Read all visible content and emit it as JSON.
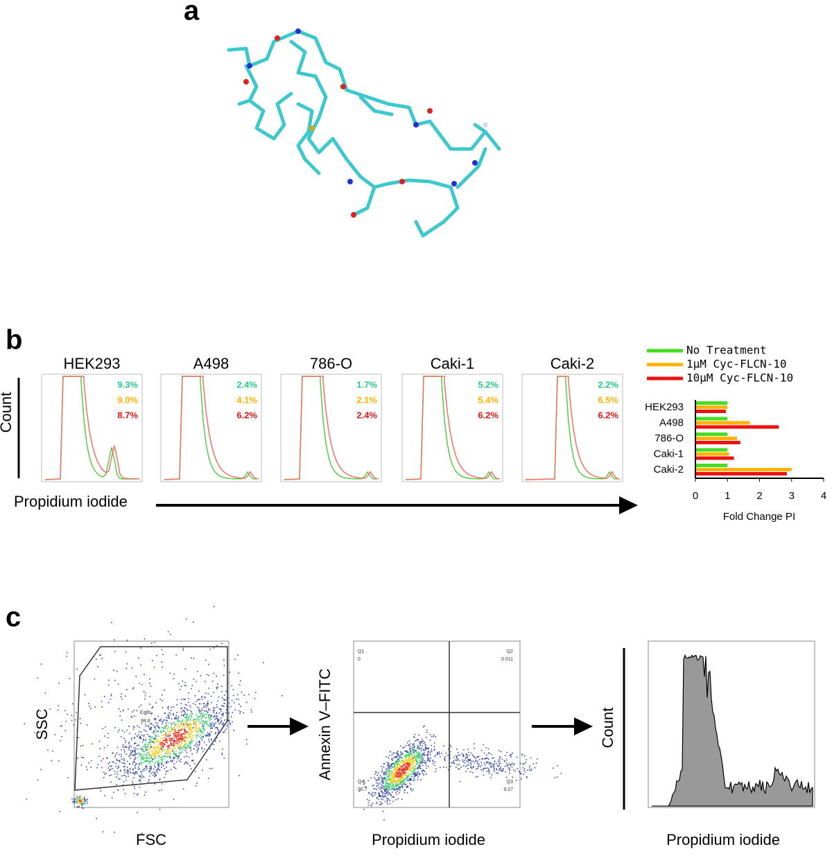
{
  "panel_a": {
    "label": "a"
  },
  "panel_b": {
    "label": "b",
    "y_label": "Count",
    "x_label": "Propidium iodide",
    "histograms": [
      {
        "title": "HEK293",
        "percentages": [
          "9.3%",
          "9.0%",
          "8.7%"
        ]
      },
      {
        "title": "A498",
        "percentages": [
          "2.4%",
          "4.1%",
          "6.2%"
        ]
      },
      {
        "title": "786-O",
        "percentages": [
          "1.7%",
          "2.1%",
          "2.4%"
        ]
      },
      {
        "title": "Caki-1",
        "percentages": [
          "5.2%",
          "5.4%",
          "6.2%"
        ]
      },
      {
        "title": "Caki-2",
        "percentages": [
          "2.2%",
          "6.5%",
          "6.2%"
        ]
      }
    ],
    "bar_chart": {
      "type": "bar",
      "orientation": "horizontal",
      "x_label": "Fold Change PI",
      "categories": [
        "HEK293",
        "A498",
        "786-O",
        "Caki-1",
        "Caki-2"
      ],
      "series": [
        {
          "name": "No Treatment",
          "color": "#44dd22",
          "values": [
            1.0,
            1.0,
            1.0,
            1.0,
            1.0
          ]
        },
        {
          "name": "1μM Cyc-FLCN-10",
          "color": "#ffb300",
          "values": [
            1.0,
            1.7,
            1.3,
            1.05,
            3.0
          ]
        },
        {
          "name": "10μM Cyc-FLCN-10",
          "color": "#ee1111",
          "values": [
            0.95,
            2.6,
            1.4,
            1.2,
            2.85
          ]
        }
      ],
      "xlim": [
        0,
        4
      ],
      "xticks": [
        0,
        1,
        2,
        3,
        4
      ]
    }
  },
  "panel_c": {
    "label": "c",
    "gating": {
      "x_label": "FSC",
      "y_label": "SSC",
      "gate_name": "Cells",
      "gate_value": "88.6"
    },
    "quadrants": {
      "x_label": "Propidium iodide",
      "y_label": "Annexin V–FITC",
      "labels": [
        [
          "Q1",
          "0"
        ],
        [
          "Q2",
          "0.011"
        ],
        [
          "Q4",
          "90.7"
        ],
        [
          "Q3",
          "9.27"
        ]
      ]
    },
    "histogram": {
      "x_label": "Propidium iodide",
      "y_label": "Count"
    }
  }
}
